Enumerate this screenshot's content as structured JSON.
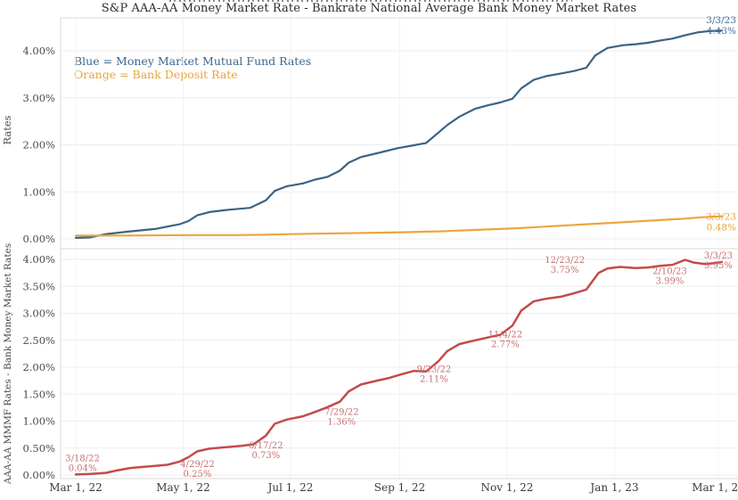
{
  "title": "S&P AAA-AA Money Market Rate - Bankrate National Average Bank Money Market Rates",
  "legend": {
    "line1": "Blue = Money Market Mutual Fund Rates",
    "line2": "Orange = Bank Deposit Rate"
  },
  "colors": {
    "blue_line": "#3d6383",
    "blue_label": "#44709d",
    "orange_line": "#eca63c",
    "orange_label": "#e8a43c",
    "red_line": "#c34b4b",
    "red_label": "#c87070",
    "grid": "#ededed",
    "vgrid": "#f3f3f3",
    "border": "#d9d9d9",
    "tick_text": "#4a4a4a",
    "axis_title_text": "#4a4a4a"
  },
  "x_axis": {
    "tick_labels": [
      "Mar 1, 22",
      "May 1, 22",
      "Jul 1, 22",
      "Sep 1, 22",
      "Nov 1, 22",
      "Jan 1, 23",
      "Mar 1, 23"
    ],
    "tick_dates": [
      "2022-03-01",
      "2022-05-01",
      "2022-07-01",
      "2022-09-01",
      "2022-11-01",
      "2023-01-01",
      "2023-03-01"
    ]
  },
  "top_panel": {
    "y_label": "Rates",
    "y_tick_labels": [
      "4.00%",
      "3.00%",
      "2.00%",
      "1.00%",
      "0.00%"
    ],
    "y_tick_values": [
      4,
      3,
      2,
      1,
      0
    ],
    "end_labels": [
      {
        "series": "mmmf",
        "date_label": "3/3/23",
        "value_label": "4.43%",
        "date": "2023-03-03",
        "value": 4.43
      },
      {
        "series": "bank",
        "date_label": "3/3/23",
        "value_label": "0.48%",
        "date": "2023-03-03",
        "value": 0.48
      }
    ]
  },
  "bottom_panel": {
    "y_label": "AAA-AA MMMF Rates - Bank Money Market Rates",
    "y_tick_labels": [
      "4.00%",
      "3.50%",
      "3.00%",
      "2.50%",
      "2.00%",
      "1.50%",
      "1.00%",
      "0.50%",
      "0.00%"
    ],
    "y_tick_values": [
      4,
      3.5,
      3,
      2.5,
      2,
      1.5,
      1,
      0.5,
      0
    ],
    "annotations": [
      {
        "date_label": "3/18/22",
        "value_label": "0.04%",
        "date": "2022-03-18",
        "value": 0.04
      },
      {
        "date_label": "4/29/22",
        "value_label": "0.25%",
        "date": "2022-04-29",
        "value": 0.25
      },
      {
        "date_label": "6/17/22",
        "value_label": "0.73%",
        "date": "2022-06-17",
        "value": 0.73
      },
      {
        "date_label": "7/29/22",
        "value_label": "1.36%",
        "date": "2022-07-29",
        "value": 1.36
      },
      {
        "date_label": "9/23/22",
        "value_label": "2.11%",
        "date": "2022-09-23",
        "value": 2.11
      },
      {
        "date_label": "11/4/22",
        "value_label": "2.77%",
        "date": "2022-11-04",
        "value": 2.77
      },
      {
        "date_label": "12/23/22",
        "value_label": "3.75%",
        "date": "2022-12-23",
        "value": 3.75
      },
      {
        "date_label": "2/10/23",
        "value_label": "3.99%",
        "date": "2023-02-10",
        "value": 3.99
      },
      {
        "date_label": "3/3/23",
        "value_label": "3.95%",
        "date": "2023-03-03",
        "value": 3.95
      }
    ]
  },
  "chart_data": [
    {
      "type": "line",
      "title": "S&P AAA-AA Money Market Rate - Bankrate National Average Bank Money Market Rates",
      "xlabel": "",
      "ylabel": "Rates",
      "ylim": [
        0,
        4.7
      ],
      "x_ticks": [
        "Mar 1, 22",
        "May 1, 22",
        "Jul 1, 22",
        "Sep 1, 22",
        "Nov 1, 22",
        "Jan 1, 23",
        "Mar 1, 23"
      ],
      "grid": true,
      "legend_position": "upper-left-inside",
      "series": [
        {
          "name": "Money Market Mutual Fund Rates",
          "color": "#3d6383",
          "points": [
            [
              "2022-03-01",
              0.02
            ],
            [
              "2022-03-09",
              0.03
            ],
            [
              "2022-03-18",
              0.1
            ],
            [
              "2022-03-25",
              0.13
            ],
            [
              "2022-04-01",
              0.16
            ],
            [
              "2022-04-15",
              0.21
            ],
            [
              "2022-04-29",
              0.31
            ],
            [
              "2022-05-04",
              0.38
            ],
            [
              "2022-05-09",
              0.5
            ],
            [
              "2022-05-16",
              0.57
            ],
            [
              "2022-05-27",
              0.62
            ],
            [
              "2022-06-08",
              0.66
            ],
            [
              "2022-06-17",
              0.82
            ],
            [
              "2022-06-22",
              1.02
            ],
            [
              "2022-06-29",
              1.12
            ],
            [
              "2022-07-08",
              1.18
            ],
            [
              "2022-07-15",
              1.26
            ],
            [
              "2022-07-22",
              1.32
            ],
            [
              "2022-07-29",
              1.45
            ],
            [
              "2022-08-03",
              1.62
            ],
            [
              "2022-08-10",
              1.74
            ],
            [
              "2022-08-19",
              1.82
            ],
            [
              "2022-08-31",
              1.93
            ],
            [
              "2022-09-09",
              1.99
            ],
            [
              "2022-09-16",
              2.04
            ],
            [
              "2022-09-23",
              2.26
            ],
            [
              "2022-09-28",
              2.42
            ],
            [
              "2022-10-05",
              2.6
            ],
            [
              "2022-10-14",
              2.77
            ],
            [
              "2022-10-21",
              2.84
            ],
            [
              "2022-10-28",
              2.9
            ],
            [
              "2022-11-04",
              2.98
            ],
            [
              "2022-11-09",
              3.2
            ],
            [
              "2022-11-16",
              3.38
            ],
            [
              "2022-11-23",
              3.46
            ],
            [
              "2022-12-02",
              3.52
            ],
            [
              "2022-12-09",
              3.57
            ],
            [
              "2022-12-16",
              3.64
            ],
            [
              "2022-12-21",
              3.9
            ],
            [
              "2022-12-28",
              4.06
            ],
            [
              "2023-01-06",
              4.12
            ],
            [
              "2023-01-13",
              4.14
            ],
            [
              "2023-01-20",
              4.17
            ],
            [
              "2023-01-27",
              4.22
            ],
            [
              "2023-02-03",
              4.26
            ],
            [
              "2023-02-10",
              4.33
            ],
            [
              "2023-02-17",
              4.39
            ],
            [
              "2023-02-24",
              4.42
            ],
            [
              "2023-03-03",
              4.43
            ]
          ]
        },
        {
          "name": "Bank Deposit Rate",
          "color": "#eca63c",
          "points": [
            [
              "2022-03-01",
              0.07
            ],
            [
              "2022-04-01",
              0.07
            ],
            [
              "2022-05-01",
              0.08
            ],
            [
              "2022-06-01",
              0.08
            ],
            [
              "2022-06-17",
              0.09
            ],
            [
              "2022-07-01",
              0.1
            ],
            [
              "2022-07-15",
              0.11
            ],
            [
              "2022-08-01",
              0.12
            ],
            [
              "2022-08-19",
              0.13
            ],
            [
              "2022-09-02",
              0.14
            ],
            [
              "2022-09-23",
              0.16
            ],
            [
              "2022-10-07",
              0.18
            ],
            [
              "2022-10-21",
              0.2
            ],
            [
              "2022-11-04",
              0.22
            ],
            [
              "2022-11-18",
              0.25
            ],
            [
              "2022-12-02",
              0.28
            ],
            [
              "2022-12-16",
              0.31
            ],
            [
              "2022-12-30",
              0.34
            ],
            [
              "2023-01-13",
              0.37
            ],
            [
              "2023-01-27",
              0.4
            ],
            [
              "2023-02-10",
              0.43
            ],
            [
              "2023-02-20",
              0.46
            ],
            [
              "2023-03-03",
              0.48
            ]
          ]
        }
      ]
    },
    {
      "type": "line",
      "title": "",
      "xlabel": "",
      "ylabel": "AAA-AA MMMF Rates - Bank Money Market Rates",
      "ylim": [
        0,
        4.2
      ],
      "x_ticks": [
        "Mar 1, 22",
        "May 1, 22",
        "Jul 1, 22",
        "Sep 1, 22",
        "Nov 1, 22",
        "Jan 1, 23",
        "Mar 1, 23"
      ],
      "grid": true,
      "series": [
        {
          "name": "AAA-AA MMMF Rates - Bank Money Market Rates",
          "color": "#c34b4b",
          "points": [
            [
              "2022-03-01",
              0.01
            ],
            [
              "2022-03-09",
              0.02
            ],
            [
              "2022-03-18",
              0.04
            ],
            [
              "2022-03-25",
              0.09
            ],
            [
              "2022-04-01",
              0.13
            ],
            [
              "2022-04-08",
              0.15
            ],
            [
              "2022-04-15",
              0.17
            ],
            [
              "2022-04-22",
              0.19
            ],
            [
              "2022-04-29",
              0.25
            ],
            [
              "2022-05-04",
              0.33
            ],
            [
              "2022-05-09",
              0.44
            ],
            [
              "2022-05-16",
              0.49
            ],
            [
              "2022-05-27",
              0.52
            ],
            [
              "2022-06-03",
              0.54
            ],
            [
              "2022-06-10",
              0.57
            ],
            [
              "2022-06-17",
              0.73
            ],
            [
              "2022-06-22",
              0.95
            ],
            [
              "2022-06-29",
              1.03
            ],
            [
              "2022-07-08",
              1.09
            ],
            [
              "2022-07-15",
              1.17
            ],
            [
              "2022-07-22",
              1.26
            ],
            [
              "2022-07-29",
              1.36
            ],
            [
              "2022-08-03",
              1.55
            ],
            [
              "2022-08-10",
              1.68
            ],
            [
              "2022-08-19",
              1.75
            ],
            [
              "2022-08-26",
              1.8
            ],
            [
              "2022-09-02",
              1.87
            ],
            [
              "2022-09-09",
              1.93
            ],
            [
              "2022-09-16",
              1.92
            ],
            [
              "2022-09-23",
              2.11
            ],
            [
              "2022-09-28",
              2.3
            ],
            [
              "2022-10-05",
              2.43
            ],
            [
              "2022-10-14",
              2.5
            ],
            [
              "2022-10-21",
              2.55
            ],
            [
              "2022-10-28",
              2.6
            ],
            [
              "2022-11-04",
              2.77
            ],
            [
              "2022-11-09",
              3.05
            ],
            [
              "2022-11-16",
              3.22
            ],
            [
              "2022-11-23",
              3.27
            ],
            [
              "2022-12-02",
              3.31
            ],
            [
              "2022-12-09",
              3.37
            ],
            [
              "2022-12-16",
              3.44
            ],
            [
              "2022-12-23",
              3.75
            ],
            [
              "2022-12-28",
              3.83
            ],
            [
              "2023-01-04",
              3.86
            ],
            [
              "2023-01-13",
              3.84
            ],
            [
              "2023-01-20",
              3.85
            ],
            [
              "2023-01-27",
              3.88
            ],
            [
              "2023-02-03",
              3.9
            ],
            [
              "2023-02-10",
              3.99
            ],
            [
              "2023-02-15",
              3.94
            ],
            [
              "2023-02-22",
              3.91
            ],
            [
              "2023-03-03",
              3.95
            ]
          ]
        }
      ]
    }
  ]
}
